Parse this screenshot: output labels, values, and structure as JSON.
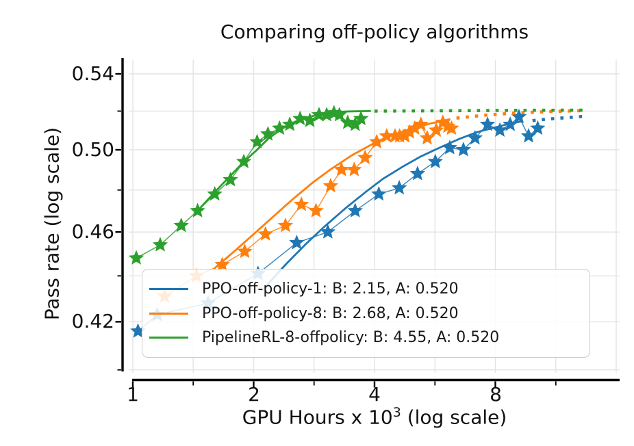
{
  "title": "Comparing off-policy algorithms",
  "x_axis": {
    "label_text": "GPU Hours x 10",
    "label_superscript": "3",
    "label_suffix": " (log scale)",
    "scale": "log",
    "tick_labels": [
      "1",
      "2",
      "4",
      "8"
    ],
    "tick_values": [
      1,
      2,
      4,
      8
    ],
    "minor_tick_values": [
      1.414,
      2.828,
      5.657,
      11.314
    ],
    "gridline_values": [
      1,
      1.414,
      2,
      2.828,
      4,
      5.657,
      8,
      11.314,
      16
    ],
    "range": [
      1,
      16
    ]
  },
  "y_axis": {
    "label": "Pass rate (log scale)",
    "scale": "log",
    "tick_labels": [
      "0.54",
      "0.50",
      "0.46",
      "0.42"
    ],
    "tick_values": [
      0.54,
      0.5,
      0.46,
      0.42
    ],
    "minor_tick_values": [
      0.52,
      0.48,
      0.44,
      0.4
    ],
    "gridline_values": [
      0.54,
      0.52,
      0.5,
      0.48,
      0.46,
      0.44,
      0.42,
      0.4
    ],
    "range": [
      0.4,
      0.557
    ]
  },
  "legend": {
    "entries": [
      {
        "label": "PPO-off-policy-1: B: 2.15, A: 0.520",
        "color": "#1f77b4"
      },
      {
        "label": "PPO-off-policy-8: B: 2.68, A: 0.520",
        "color": "#ff7f0e"
      },
      {
        "label": "PipelineRL-8-offpolicy: B: 4.55, A: 0.520",
        "color": "#2ca02c"
      }
    ]
  },
  "colors": {
    "blue": "#1f77b4",
    "orange": "#ff7f0e",
    "green": "#2ca02c",
    "grid": "#e3e3e3",
    "spine": "#000000",
    "text": "#111111",
    "legend_border": "#cccccc"
  },
  "chart_data": {
    "type": "line",
    "title": "Comparing off-policy algorithms",
    "xlabel": "GPU Hours x 10^3 (log scale)",
    "ylabel": "Pass rate (log scale)",
    "x_range": [
      1,
      16
    ],
    "y_range": [
      0.4,
      0.557
    ],
    "grid": true,
    "legend_position": "lower center-left",
    "series": [
      {
        "name": "PPO-off-policy-1",
        "color": "#1f77b4",
        "B": 2.15,
        "A": 0.52,
        "points": [
          [
            1.03,
            0.416
          ],
          [
            1.15,
            0.423
          ],
          [
            1.54,
            0.428
          ],
          [
            2.05,
            0.441
          ],
          [
            2.56,
            0.455
          ],
          [
            3.06,
            0.46
          ],
          [
            3.58,
            0.47
          ],
          [
            4.1,
            0.478
          ],
          [
            4.61,
            0.481
          ],
          [
            5.12,
            0.488
          ],
          [
            5.67,
            0.494
          ],
          [
            6.16,
            0.501
          ],
          [
            6.66,
            0.5
          ],
          [
            7.12,
            0.506
          ],
          [
            7.65,
            0.513
          ],
          [
            8.21,
            0.51
          ],
          [
            8.71,
            0.513
          ],
          [
            9.16,
            0.517
          ],
          [
            9.68,
            0.507
          ],
          [
            10.2,
            0.511
          ]
        ],
        "fit": [
          [
            2.1,
            0.4335
          ],
          [
            2.4,
            0.445
          ],
          [
            2.7,
            0.4545
          ],
          [
            3.0,
            0.4625
          ],
          [
            3.4,
            0.4715
          ],
          [
            3.8,
            0.479
          ],
          [
            4.2,
            0.4855
          ],
          [
            4.7,
            0.4915
          ],
          [
            5.2,
            0.4965
          ],
          [
            5.8,
            0.501
          ],
          [
            6.5,
            0.5055
          ],
          [
            7.2,
            0.509
          ],
          [
            8.0,
            0.5115
          ],
          [
            8.7,
            0.5135
          ],
          [
            9.3,
            0.5146
          ]
        ],
        "dotted": [
          [
            9.9,
            0.515
          ],
          [
            10.8,
            0.5158
          ],
          [
            11.9,
            0.5165
          ],
          [
            13.2,
            0.5172
          ]
        ]
      },
      {
        "name": "PPO-off-policy-8",
        "color": "#ff7f0e",
        "B": 2.68,
        "A": 0.52,
        "points": [
          [
            1.2,
            0.431
          ],
          [
            1.44,
            0.44
          ],
          [
            1.67,
            0.445
          ],
          [
            1.9,
            0.451
          ],
          [
            2.14,
            0.459
          ],
          [
            2.4,
            0.463
          ],
          [
            2.63,
            0.473
          ],
          [
            2.86,
            0.47
          ],
          [
            3.11,
            0.482
          ],
          [
            3.31,
            0.49
          ],
          [
            3.56,
            0.49
          ],
          [
            3.79,
            0.496
          ],
          [
            4.05,
            0.504
          ],
          [
            4.29,
            0.507
          ],
          [
            4.5,
            0.507
          ],
          [
            4.62,
            0.507
          ],
          [
            4.76,
            0.507
          ],
          [
            4.89,
            0.509
          ],
          [
            5.04,
            0.511
          ],
          [
            5.22,
            0.513
          ],
          [
            5.41,
            0.506
          ],
          [
            5.7,
            0.51
          ],
          [
            5.92,
            0.514
          ],
          [
            6.09,
            0.512
          ],
          [
            6.22,
            0.511
          ]
        ],
        "fit": [
          [
            1.6,
            0.4435
          ],
          [
            1.8,
            0.4515
          ],
          [
            2.0,
            0.459
          ],
          [
            2.2,
            0.466
          ],
          [
            2.5,
            0.4755
          ],
          [
            2.8,
            0.4835
          ],
          [
            3.1,
            0.49
          ],
          [
            3.5,
            0.497
          ],
          [
            4.0,
            0.5035
          ],
          [
            4.5,
            0.508
          ],
          [
            5.0,
            0.511
          ],
          [
            5.5,
            0.5135
          ],
          [
            6.0,
            0.5152
          ],
          [
            6.15,
            0.5157
          ]
        ],
        "dotted": [
          [
            6.4,
            0.5163
          ],
          [
            7.5,
            0.5178
          ],
          [
            9.0,
            0.519
          ],
          [
            11.0,
            0.5198
          ],
          [
            13.35,
            0.5203
          ]
        ]
      },
      {
        "name": "PipelineRL-8-offpolicy",
        "color": "#2ca02c",
        "B": 4.55,
        "A": 0.52,
        "points": [
          [
            1.02,
            0.448
          ],
          [
            1.17,
            0.454
          ],
          [
            1.32,
            0.463
          ],
          [
            1.45,
            0.47
          ],
          [
            1.6,
            0.478
          ],
          [
            1.75,
            0.485
          ],
          [
            1.89,
            0.494
          ],
          [
            2.04,
            0.504
          ],
          [
            2.17,
            0.508
          ],
          [
            2.32,
            0.511
          ],
          [
            2.46,
            0.513
          ],
          [
            2.61,
            0.516
          ],
          [
            2.76,
            0.515
          ],
          [
            2.91,
            0.518
          ],
          [
            3.04,
            0.518
          ],
          [
            3.17,
            0.519
          ],
          [
            3.27,
            0.518
          ],
          [
            3.43,
            0.514
          ],
          [
            3.58,
            0.513
          ],
          [
            3.7,
            0.516
          ]
        ],
        "fit": [
          [
            1.45,
            0.47
          ],
          [
            1.6,
            0.479
          ],
          [
            1.75,
            0.487
          ],
          [
            1.89,
            0.494
          ],
          [
            2.04,
            0.5
          ],
          [
            2.17,
            0.5055
          ],
          [
            2.32,
            0.51
          ],
          [
            2.46,
            0.5132
          ],
          [
            2.61,
            0.5155
          ],
          [
            2.76,
            0.517
          ],
          [
            2.91,
            0.5182
          ],
          [
            3.05,
            0.519
          ],
          [
            3.2,
            0.5195
          ],
          [
            3.4,
            0.5198
          ],
          [
            3.6,
            0.5199
          ],
          [
            3.9,
            0.52
          ]
        ],
        "dotted": [
          [
            4.0,
            0.52
          ],
          [
            6.0,
            0.5202
          ],
          [
            9.0,
            0.5204
          ],
          [
            13.45,
            0.5205
          ]
        ]
      }
    ]
  }
}
